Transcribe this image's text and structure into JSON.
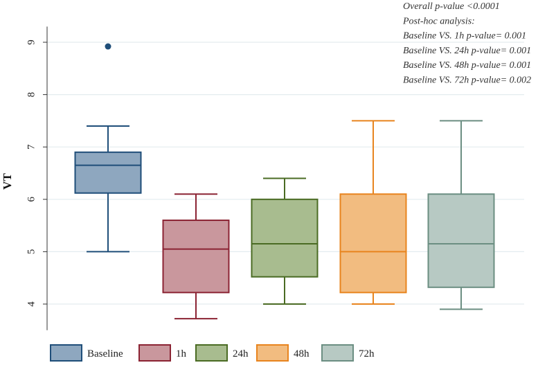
{
  "chart_data": {
    "type": "boxplot",
    "title": "",
    "xlabel": "",
    "ylabel": "VT",
    "ylim": [
      3.5,
      9.3
    ],
    "yticks": [
      4,
      5,
      6,
      7,
      8,
      9
    ],
    "grid": true,
    "legend_position": "bottom",
    "series": [
      {
        "name": "Baseline",
        "whisker_low": 5.0,
        "q1": 6.12,
        "median": 6.65,
        "q3": 6.9,
        "whisker_high": 7.4,
        "outliers": [
          8.92
        ],
        "stroke": "#1f4e79",
        "fill": "#8ea7bf"
      },
      {
        "name": "1h",
        "whisker_low": 3.72,
        "q1": 4.22,
        "median": 5.05,
        "q3": 5.6,
        "whisker_high": 6.1,
        "outliers": [],
        "stroke": "#8b2333",
        "fill": "#c9979d"
      },
      {
        "name": "24h",
        "whisker_low": 4.0,
        "q1": 4.52,
        "median": 5.15,
        "q3": 6.0,
        "whisker_high": 6.4,
        "outliers": [],
        "stroke": "#4a6b23",
        "fill": "#a8bc8f"
      },
      {
        "name": "48h",
        "whisker_low": 4.0,
        "q1": 4.22,
        "median": 5.0,
        "q3": 6.1,
        "whisker_high": 7.5,
        "outliers": [],
        "stroke": "#e8841e",
        "fill": "#f2bc80"
      },
      {
        "name": "72h",
        "whisker_low": 3.9,
        "q1": 4.32,
        "median": 5.15,
        "q3": 6.1,
        "whisker_high": 7.5,
        "outliers": [],
        "stroke": "#6b8e82",
        "fill": "#b7c9c3"
      }
    ],
    "annotations": [
      "Overall p-value <0.0001",
      "Post-hoc analysis:",
      "Baseline VS. 1h p-value= 0.001",
      "Baseline VS. 24h p-value= 0.001",
      "Baseline VS. 48h p-value= 0.001",
      "Baseline VS. 72h p-value= 0.002"
    ]
  }
}
